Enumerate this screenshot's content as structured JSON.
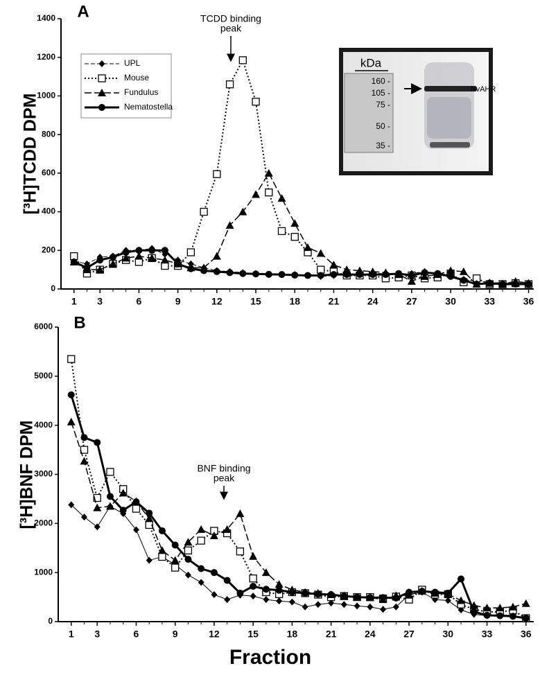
{
  "chart_data": [
    {
      "type": "line",
      "panel": "A",
      "y_label": "[³H]TCDD DPM",
      "annotation": [
        "TCDD binding",
        "peak"
      ],
      "x": [
        1,
        2,
        3,
        4,
        5,
        6,
        7,
        8,
        9,
        10,
        11,
        12,
        13,
        14,
        15,
        16,
        17,
        18,
        19,
        20,
        21,
        22,
        23,
        24,
        25,
        26,
        27,
        28,
        29,
        30,
        31,
        32,
        33,
        34,
        35,
        36
      ],
      "xlim": [
        0,
        36.4
      ],
      "xticks": [
        1,
        3,
        6,
        9,
        12,
        15,
        18,
        21,
        24,
        27,
        30,
        33,
        36
      ],
      "ylim": [
        0,
        1400
      ],
      "yticks": [
        0,
        200,
        400,
        600,
        800,
        1000,
        1200,
        1400
      ],
      "legend": "upper-left",
      "series": [
        {
          "name": "UPL",
          "color": "#000",
          "marker": "diamond",
          "dash": "dashed",
          "width": 1,
          "values": [
            145,
            130,
            165,
            170,
            200,
            200,
            210,
            180,
            150,
            130,
            110,
            95,
            90,
            85,
            80,
            75,
            75,
            75,
            70,
            65,
            70,
            80,
            75,
            80,
            80,
            75,
            80,
            90,
            70,
            70,
            50,
            40,
            35,
            30,
            35,
            25
          ]
        },
        {
          "name": "Mouse",
          "color": "#000",
          "marker": "square-open",
          "dash": "dotted",
          "width": 2,
          "values": [
            170,
            80,
            100,
            130,
            150,
            140,
            160,
            120,
            120,
            190,
            400,
            595,
            1060,
            1185,
            970,
            500,
            300,
            270,
            190,
            100,
            90,
            70,
            70,
            70,
            55,
            60,
            70,
            55,
            60,
            80,
            35,
            55,
            25,
            25,
            30,
            25
          ]
        },
        {
          "name": "Fundulus",
          "color": "#000",
          "marker": "triangle",
          "dash": "long-dash",
          "width": 1.5,
          "values": [
            140,
            100,
            100,
            130,
            160,
            170,
            160,
            150,
            130,
            110,
            110,
            170,
            330,
            400,
            490,
            600,
            470,
            340,
            215,
            185,
            125,
            100,
            95,
            90,
            85,
            75,
            40,
            65,
            75,
            95,
            90,
            25,
            30,
            25,
            40,
            30
          ]
        },
        {
          "name": "Nematostella",
          "color": "#000",
          "marker": "circle",
          "dash": "solid",
          "width": 3,
          "values": [
            140,
            110,
            150,
            165,
            190,
            200,
            200,
            200,
            130,
            105,
            95,
            90,
            85,
            80,
            78,
            76,
            75,
            72,
            70,
            70,
            75,
            75,
            75,
            75,
            75,
            80,
            70,
            85,
            80,
            65,
            45,
            25,
            30,
            25,
            25,
            25
          ]
        }
      ],
      "inset": {
        "title": "kDa",
        "markers": [
          "160 -",
          "105 -",
          "75 -",
          "50 -",
          "35 -"
        ],
        "band_label": "NvAHR"
      }
    },
    {
      "type": "line",
      "panel": "B",
      "y_label": "[³H]BNF DPM",
      "x_label": "Fraction",
      "annotation": [
        "BNF binding",
        "peak"
      ],
      "x": [
        1,
        2,
        3,
        4,
        5,
        6,
        7,
        8,
        9,
        10,
        11,
        12,
        13,
        14,
        15,
        16,
        17,
        18,
        19,
        20,
        21,
        22,
        23,
        24,
        25,
        26,
        27,
        28,
        29,
        30,
        31,
        32,
        33,
        34,
        35,
        36
      ],
      "xlim": [
        0,
        36.6
      ],
      "xticks": [
        1,
        3,
        6,
        9,
        12,
        15,
        18,
        21,
        24,
        27,
        30,
        33,
        36
      ],
      "ylim": [
        0,
        6000
      ],
      "yticks": [
        0,
        1000,
        2000,
        3000,
        4000,
        5000,
        6000
      ],
      "series": [
        {
          "color": "#000",
          "marker": "diamond",
          "dash": "solid",
          "width": 1,
          "values": [
            2380,
            2130,
            1930,
            2350,
            2200,
            1870,
            1250,
            1320,
            1160,
            950,
            800,
            550,
            450,
            540,
            520,
            450,
            420,
            400,
            300,
            350,
            380,
            350,
            320,
            300,
            250,
            300,
            550,
            600,
            450,
            430,
            240,
            150,
            120,
            130,
            130,
            60
          ]
        },
        {
          "color": "#000",
          "marker": "square-open",
          "dash": "dotted",
          "width": 2,
          "values": [
            5350,
            3500,
            2520,
            3050,
            2700,
            2300,
            1970,
            1320,
            1100,
            1450,
            1650,
            1850,
            1800,
            1430,
            880,
            600,
            560,
            600,
            580,
            550,
            500,
            520,
            500,
            500,
            470,
            510,
            450,
            650,
            550,
            560,
            350,
            250,
            200,
            200,
            230,
            70
          ]
        },
        {
          "color": "#000",
          "marker": "triangle",
          "dash": "long-dash",
          "width": 1.5,
          "values": [
            4070,
            3270,
            2320,
            2350,
            2620,
            2450,
            2100,
            1450,
            1250,
            1620,
            1880,
            1750,
            1880,
            2200,
            1330,
            1000,
            760,
            650,
            600,
            580,
            550,
            530,
            500,
            490,
            450,
            530,
            540,
            620,
            580,
            560,
            430,
            330,
            280,
            280,
            300,
            370
          ]
        },
        {
          "color": "#000",
          "marker": "circle",
          "dash": "solid",
          "width": 3,
          "values": [
            4620,
            3750,
            3650,
            2550,
            2270,
            2440,
            2210,
            1850,
            1560,
            1270,
            1080,
            1000,
            840,
            580,
            720,
            660,
            640,
            600,
            580,
            560,
            550,
            520,
            500,
            490,
            490,
            480,
            600,
            620,
            600,
            580,
            870,
            200,
            130,
            120,
            110,
            70
          ]
        }
      ]
    }
  ]
}
